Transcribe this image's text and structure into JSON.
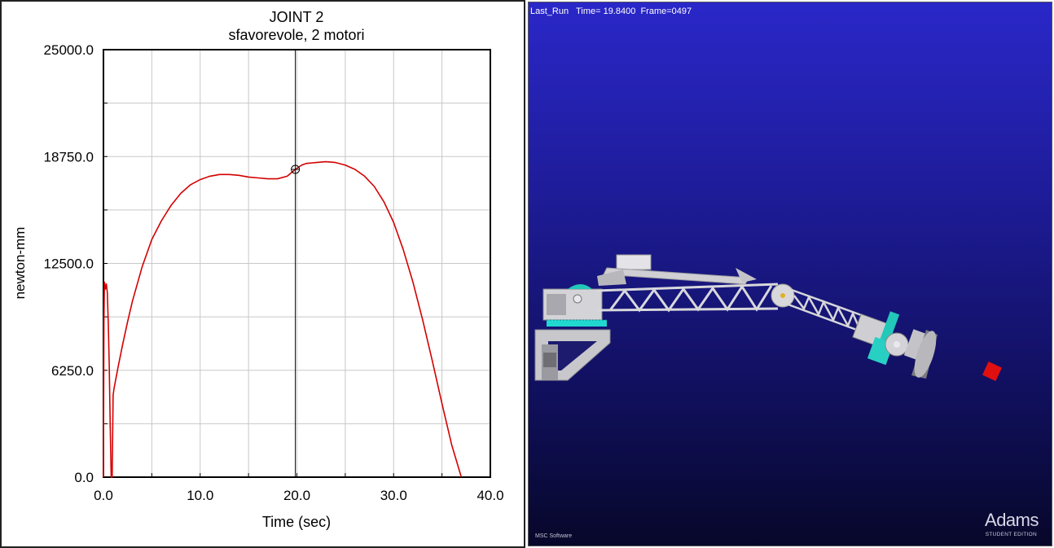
{
  "chart_data": {
    "type": "line",
    "title": "JOINT 2",
    "subtitle": "sfavorevole, 2 motori",
    "xlabel": "Time (sec)",
    "ylabel": "newton-mm",
    "xlim": [
      0,
      40
    ],
    "ylim": [
      0,
      25000
    ],
    "xticks": [
      0,
      10,
      20,
      30,
      40
    ],
    "xtick_labels": [
      "0.0",
      "10.0",
      "20.0",
      "30.0",
      "40.0"
    ],
    "yticks": [
      0,
      6250,
      12500,
      18750,
      25000
    ],
    "ytick_labels": [
      "0.0",
      "6250.0",
      "12500.0",
      "18750.0",
      "25000.0"
    ],
    "grid": true,
    "series_color": "#d40000",
    "cursor": {
      "x": 19.84,
      "y": 18000
    },
    "series": [
      {
        "x": [
          0.0,
          0.05,
          0.1,
          0.2,
          0.3,
          0.4,
          0.5,
          0.6,
          0.7,
          0.8,
          0.9,
          1.0,
          1.1,
          1.3,
          1.5,
          2.0,
          2.5,
          3.0,
          4.0,
          5.0,
          6.0,
          7.0,
          8.0,
          9.0,
          10.0,
          11.0,
          12.0,
          13.0,
          14.0,
          15.0,
          16.0,
          17.0,
          18.0,
          19.0,
          19.84,
          20.5,
          21.0,
          22.0,
          23.0,
          24.0,
          25.0,
          26.0,
          27.0,
          28.0,
          29.0,
          30.0,
          31.0,
          32.0,
          33.0,
          34.0,
          35.0,
          36.0,
          37.0
        ],
        "y": [
          0,
          9000,
          11400,
          11000,
          11300,
          10800,
          9000,
          6500,
          3000,
          0,
          0,
          4800,
          5200,
          5800,
          6400,
          7800,
          9100,
          10300,
          12300,
          13900,
          15000,
          15900,
          16600,
          17100,
          17400,
          17600,
          17700,
          17700,
          17650,
          17550,
          17500,
          17450,
          17450,
          17600,
          18000,
          18250,
          18350,
          18400,
          18450,
          18400,
          18250,
          18000,
          17600,
          17000,
          16100,
          14900,
          13300,
          11400,
          9200,
          6800,
          4300,
          1900,
          0
        ]
      }
    ]
  },
  "animation": {
    "run_info": "Last_Run   Time= 19.8400  Frame=0497",
    "target_color": "#e01010"
  },
  "branding": {
    "adams": "Adams",
    "edition": "STUDENT EDITION",
    "msc": "MSC Software"
  }
}
